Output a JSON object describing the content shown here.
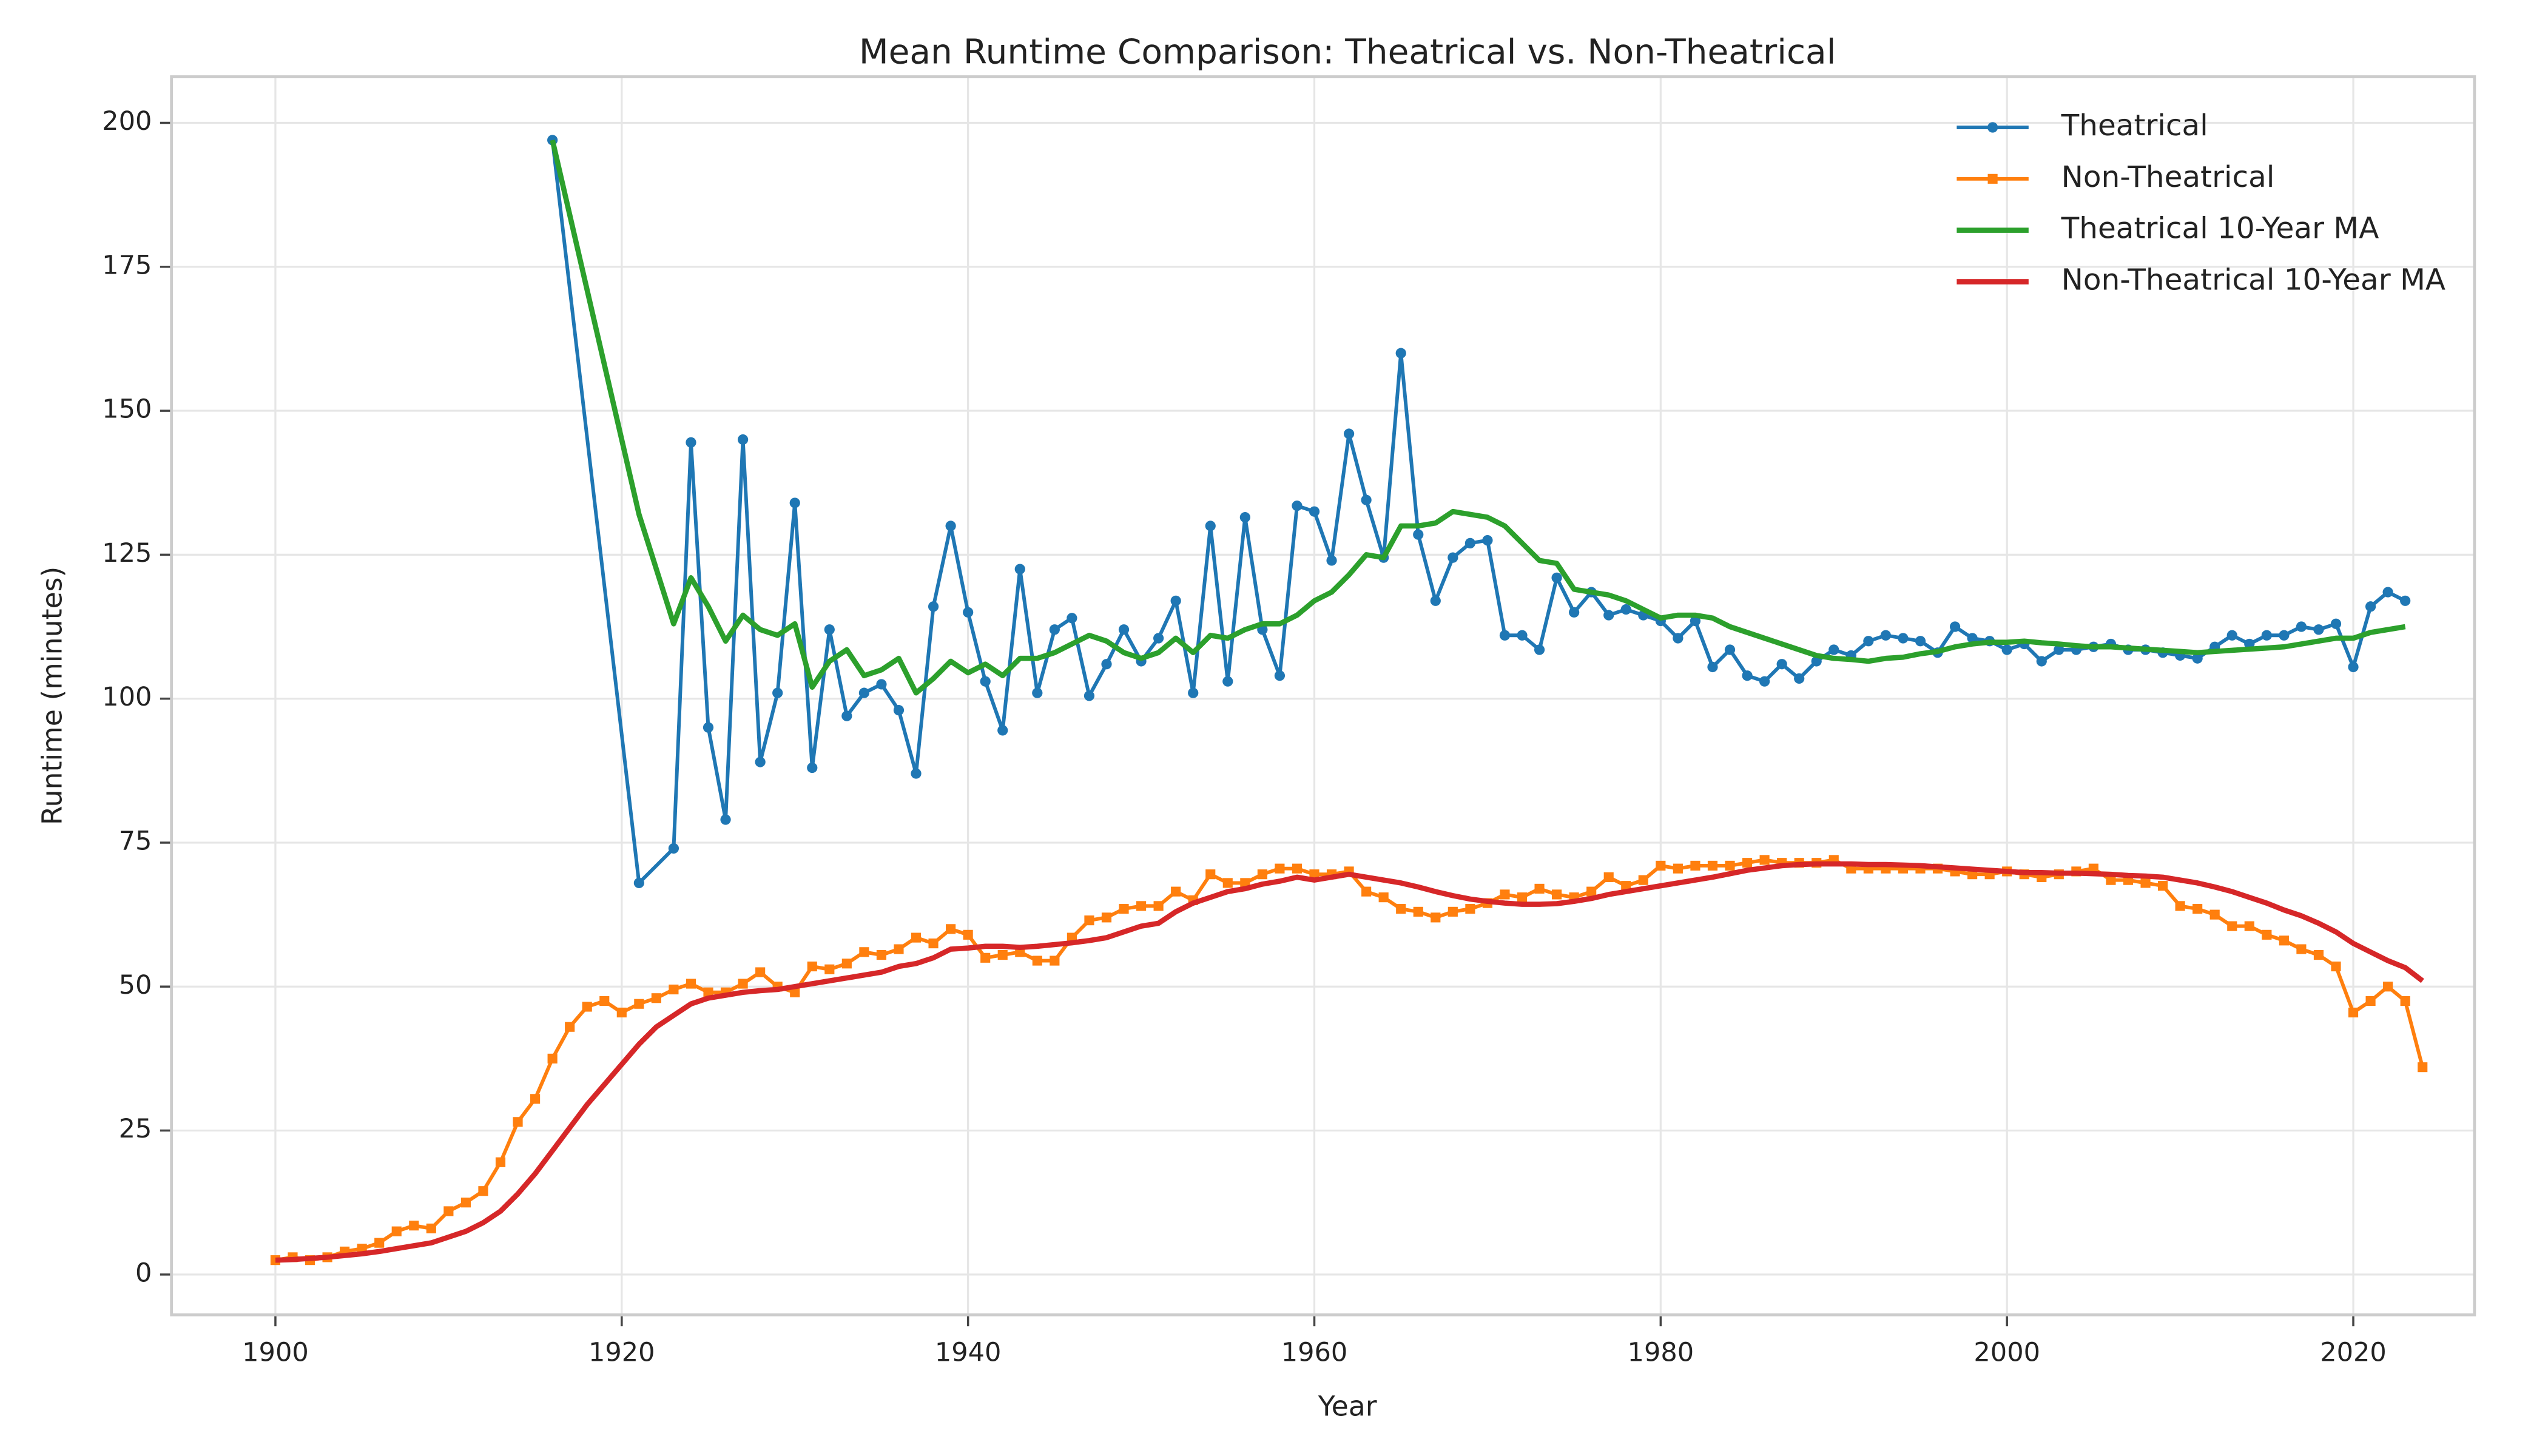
{
  "chart_data": {
    "type": "line",
    "title": "Mean Runtime Comparison: Theatrical vs. Non-Theatrical",
    "xlabel": "Year",
    "ylabel": "Runtime (minutes)",
    "xlim": [
      1894,
      2027
    ],
    "ylim": [
      -7,
      208
    ],
    "xticks": [
      1900,
      1920,
      1940,
      1960,
      1980,
      2000,
      2020
    ],
    "yticks": [
      0,
      25,
      50,
      75,
      100,
      125,
      150,
      175,
      200
    ],
    "grid": true,
    "legend": "upper right",
    "series": [
      {
        "name": "Theatrical",
        "color": "#1f77b4",
        "marker": "circle",
        "x": [
          1916,
          1921,
          1923,
          1924,
          1925,
          1926,
          1927,
          1928,
          1929,
          1930,
          1931,
          1932,
          1933,
          1934,
          1935,
          1936,
          1937,
          1938,
          1939,
          1940,
          1941,
          1942,
          1943,
          1944,
          1945,
          1946,
          1947,
          1948,
          1949,
          1950,
          1951,
          1952,
          1953,
          1954,
          1955,
          1956,
          1957,
          1958,
          1959,
          1960,
          1961,
          1962,
          1963,
          1964,
          1965,
          1966,
          1967,
          1968,
          1969,
          1970,
          1971,
          1972,
          1973,
          1974,
          1975,
          1976,
          1977,
          1978,
          1979,
          1980,
          1981,
          1982,
          1983,
          1984,
          1985,
          1986,
          1987,
          1988,
          1989,
          1990,
          1991,
          1992,
          1993,
          1994,
          1995,
          1996,
          1997,
          1998,
          1999,
          2000,
          2001,
          2002,
          2003,
          2004,
          2005,
          2006,
          2007,
          2008,
          2009,
          2010,
          2011,
          2012,
          2013,
          2014,
          2015,
          2016,
          2017,
          2018,
          2019,
          2020,
          2021,
          2022,
          2023
        ],
        "values": [
          197,
          68,
          74,
          144.5,
          95,
          79,
          145,
          89,
          101,
          134,
          88,
          112,
          97,
          101,
          102.5,
          98,
          87,
          116,
          130,
          115,
          103,
          94.5,
          122.5,
          101,
          112,
          114,
          100.5,
          106,
          112,
          106.5,
          110.5,
          117,
          101,
          130,
          103,
          131.5,
          112,
          104,
          133.5,
          132.5,
          124,
          146,
          134.5,
          124.5,
          160,
          128.5,
          117,
          124.5,
          127,
          127.5,
          111,
          111,
          108.5,
          121,
          115,
          118.5,
          114.5,
          115.5,
          114.5,
          113.5,
          110.5,
          113.5,
          105.5,
          108.5,
          104,
          103,
          106,
          103.5,
          106.5,
          108.5,
          107.5,
          110,
          111,
          110.5,
          110,
          108,
          112.5,
          110.5,
          110,
          108.5,
          109.5,
          106.5,
          108.5,
          108.5,
          109,
          109.5,
          108.5,
          108.5,
          108,
          107.5,
          107,
          109,
          111,
          109.5,
          111,
          111,
          112.5,
          112,
          113,
          105.5,
          116,
          118.5,
          117
        ]
      },
      {
        "name": "Non-Theatrical",
        "color": "#ff7f0e",
        "marker": "square",
        "x": [
          1900,
          1901,
          1902,
          1903,
          1904,
          1905,
          1906,
          1907,
          1908,
          1909,
          1910,
          1911,
          1912,
          1913,
          1914,
          1915,
          1916,
          1917,
          1918,
          1919,
          1920,
          1921,
          1922,
          1923,
          1924,
          1925,
          1926,
          1927,
          1928,
          1929,
          1930,
          1931,
          1932,
          1933,
          1934,
          1935,
          1936,
          1937,
          1938,
          1939,
          1940,
          1941,
          1942,
          1943,
          1944,
          1945,
          1946,
          1947,
          1948,
          1949,
          1950,
          1951,
          1952,
          1953,
          1954,
          1955,
          1956,
          1957,
          1958,
          1959,
          1960,
          1961,
          1962,
          1963,
          1964,
          1965,
          1966,
          1967,
          1968,
          1969,
          1970,
          1971,
          1972,
          1973,
          1974,
          1975,
          1976,
          1977,
          1978,
          1979,
          1980,
          1981,
          1982,
          1983,
          1984,
          1985,
          1986,
          1987,
          1988,
          1989,
          1990,
          1991,
          1992,
          1993,
          1994,
          1995,
          1996,
          1997,
          1998,
          1999,
          2000,
          2001,
          2002,
          2003,
          2004,
          2005,
          2006,
          2007,
          2008,
          2009,
          2010,
          2011,
          2012,
          2013,
          2014,
          2015,
          2016,
          2017,
          2018,
          2019,
          2020,
          2021,
          2022,
          2023,
          2024
        ],
        "values": [
          2.5,
          3,
          2.5,
          3,
          4,
          4.5,
          5.5,
          7.5,
          8.5,
          8,
          11,
          12.5,
          14.5,
          19.5,
          26.5,
          30.5,
          37.5,
          43,
          46.5,
          47.5,
          45.5,
          47,
          48,
          49.5,
          50.5,
          49,
          49,
          50.5,
          52.5,
          50,
          49,
          53.5,
          53,
          54,
          56,
          55.5,
          56.5,
          58.5,
          57.5,
          60,
          59,
          55,
          55.5,
          56,
          54.5,
          54.5,
          58.5,
          61.5,
          62,
          63.5,
          64,
          64,
          66.5,
          65,
          69.5,
          68,
          68,
          69.5,
          70.5,
          70.5,
          69.5,
          69.5,
          70,
          66.5,
          65.5,
          63.5,
          63,
          62,
          63,
          63.5,
          64.5,
          66,
          65.5,
          67,
          66,
          65.5,
          66.5,
          69,
          67.5,
          68.5,
          71,
          70.5,
          71,
          71,
          71,
          71.5,
          72,
          71.5,
          71.5,
          71.5,
          72,
          70.5,
          70.5,
          70.5,
          70.5,
          70.5,
          70.5,
          70,
          69.5,
          69.5,
          70,
          69.5,
          69,
          69.5,
          70,
          70.5,
          68.5,
          68.5,
          68,
          67.5,
          64,
          63.5,
          62.5,
          60.5,
          60.5,
          59,
          58,
          56.5,
          55.5,
          53.5,
          45.5,
          47.5,
          50,
          47.5,
          36
        ]
      },
      {
        "name": "Theatrical 10-Year MA",
        "color": "#2ca02c",
        "x": [
          1916,
          1921,
          1923,
          1924,
          1925,
          1926,
          1927,
          1928,
          1929,
          1930,
          1931,
          1932,
          1933,
          1934,
          1935,
          1936,
          1937,
          1938,
          1939,
          1940,
          1941,
          1942,
          1943,
          1944,
          1945,
          1946,
          1947,
          1948,
          1949,
          1950,
          1951,
          1952,
          1953,
          1954,
          1955,
          1956,
          1957,
          1958,
          1959,
          1960,
          1961,
          1962,
          1963,
          1964,
          1965,
          1966,
          1967,
          1968,
          1969,
          1970,
          1971,
          1972,
          1973,
          1974,
          1975,
          1976,
          1977,
          1978,
          1979,
          1980,
          1981,
          1982,
          1983,
          1984,
          1985,
          1986,
          1987,
          1988,
          1989,
          1990,
          1991,
          1992,
          1993,
          1994,
          1995,
          1996,
          1997,
          1998,
          1999,
          2000,
          2001,
          2002,
          2003,
          2004,
          2005,
          2006,
          2007,
          2008,
          2009,
          2010,
          2011,
          2012,
          2013,
          2014,
          2015,
          2016,
          2017,
          2018,
          2019,
          2020,
          2021,
          2022,
          2023
        ],
        "values": [
          197,
          132,
          113,
          121,
          116,
          110,
          114.5,
          112,
          111,
          113,
          102,
          106.5,
          108.5,
          104,
          105,
          107,
          101,
          103.5,
          106.5,
          104.5,
          106,
          104,
          107,
          107,
          108,
          109.5,
          111,
          110,
          108,
          107,
          108,
          110.5,
          108,
          111,
          110.5,
          112,
          113,
          113,
          114.5,
          117,
          118.5,
          121.5,
          125,
          124.5,
          130,
          130,
          130.5,
          132.5,
          132,
          131.5,
          130,
          127,
          124,
          123.5,
          119,
          118.5,
          118,
          117,
          115.5,
          114,
          114.5,
          114.5,
          114,
          112.5,
          111.5,
          110.5,
          109.5,
          108.5,
          107.5,
          107,
          106.8,
          106.5,
          107,
          107.2,
          107.8,
          108.2,
          109,
          109.5,
          109.8,
          109.8,
          110,
          109.7,
          109.5,
          109.2,
          109,
          109,
          108.8,
          108.6,
          108.4,
          108.2,
          108,
          108.2,
          108.4,
          108.6,
          108.8,
          109,
          109.5,
          110,
          110.5,
          110.5,
          111.5,
          112,
          112.5
        ]
      },
      {
        "name": "Non-Theatrical 10-Year MA",
        "color": "#d62728",
        "x": [
          1900,
          1901,
          1902,
          1903,
          1904,
          1905,
          1906,
          1907,
          1908,
          1909,
          1910,
          1911,
          1912,
          1913,
          1914,
          1915,
          1916,
          1917,
          1918,
          1919,
          1920,
          1921,
          1922,
          1923,
          1924,
          1925,
          1926,
          1927,
          1928,
          1929,
          1930,
          1931,
          1932,
          1933,
          1934,
          1935,
          1936,
          1937,
          1938,
          1939,
          1940,
          1941,
          1942,
          1943,
          1944,
          1945,
          1946,
          1947,
          1948,
          1949,
          1950,
          1951,
          1952,
          1953,
          1954,
          1955,
          1956,
          1957,
          1958,
          1959,
          1960,
          1961,
          1962,
          1963,
          1964,
          1965,
          1966,
          1967,
          1968,
          1969,
          1970,
          1971,
          1972,
          1973,
          1974,
          1975,
          1976,
          1977,
          1978,
          1979,
          1980,
          1981,
          1982,
          1983,
          1984,
          1985,
          1986,
          1987,
          1988,
          1989,
          1990,
          1991,
          1992,
          1993,
          1994,
          1995,
          1996,
          1997,
          1998,
          1999,
          2000,
          2001,
          2002,
          2003,
          2004,
          2005,
          2006,
          2007,
          2008,
          2009,
          2010,
          2011,
          2012,
          2013,
          2014,
          2015,
          2016,
          2017,
          2018,
          2019,
          2020,
          2021,
          2022,
          2023,
          2024
        ],
        "values": [
          2.5,
          2.6,
          2.8,
          3.0,
          3.3,
          3.6,
          4.0,
          4.5,
          5.0,
          5.5,
          6.5,
          7.5,
          9.0,
          11.0,
          14.0,
          17.5,
          21.5,
          25.5,
          29.5,
          33.0,
          36.5,
          40.0,
          43.0,
          45.0,
          47.0,
          48.0,
          48.5,
          49.0,
          49.3,
          49.5,
          50.0,
          50.5,
          51.0,
          51.5,
          52.0,
          52.5,
          53.5,
          54.0,
          55.0,
          56.5,
          56.7,
          57.0,
          57.0,
          56.8,
          57.0,
          57.3,
          57.6,
          58.0,
          58.5,
          59.5,
          60.5,
          61.0,
          63.0,
          64.5,
          65.5,
          66.5,
          67.0,
          67.8,
          68.3,
          69.0,
          68.5,
          69.0,
          69.5,
          69.0,
          68.5,
          68.0,
          67.3,
          66.5,
          65.8,
          65.2,
          64.8,
          64.5,
          64.3,
          64.3,
          64.4,
          64.8,
          65.3,
          66.0,
          66.5,
          67.0,
          67.5,
          68.0,
          68.5,
          69.0,
          69.6,
          70.2,
          70.6,
          71.0,
          71.2,
          71.3,
          71.3,
          71.3,
          71.2,
          71.2,
          71.1,
          71.0,
          70.8,
          70.6,
          70.4,
          70.2,
          70.0,
          69.8,
          69.8,
          69.7,
          69.7,
          69.6,
          69.5,
          69.3,
          69.2,
          69.0,
          68.5,
          68.0,
          67.3,
          66.5,
          65.5,
          64.5,
          63.3,
          62.3,
          61.0,
          59.5,
          57.5,
          56.0,
          54.5,
          53.3,
          51.0
        ]
      }
    ]
  }
}
